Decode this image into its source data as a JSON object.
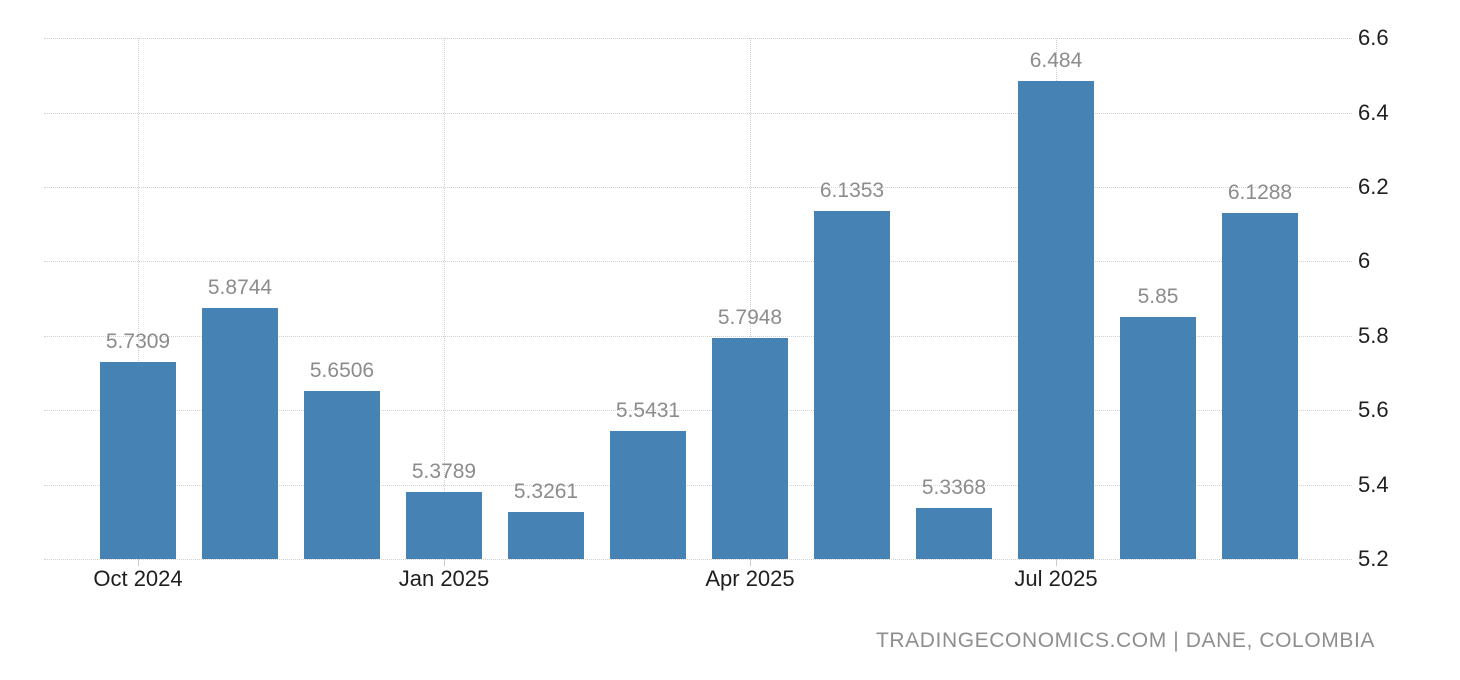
{
  "chart_data": {
    "type": "bar",
    "title": "",
    "xlabel": "",
    "ylabel": "",
    "legend": "none",
    "grid": "dotted horizontal at every y tick; dotted vertical at quarter x ticks",
    "y_axis_side": "right",
    "ylim": [
      5.2,
      6.7
    ],
    "values": [
      5.7309,
      5.8744,
      5.6506,
      5.3789,
      5.3261,
      5.5431,
      5.7948,
      6.1353,
      5.3368,
      6.484,
      5.85,
      6.1288
    ],
    "value_labels": [
      "5.7309",
      "5.8744",
      "5.6506",
      "5.3789",
      "5.3261",
      "5.5431",
      "5.7948",
      "6.1353",
      "5.3368",
      "6.484",
      "5.85",
      "6.1288"
    ],
    "x_ticks": [
      {
        "label": "Oct 2024",
        "bar_index": 0
      },
      {
        "label": "Jan 2025",
        "bar_index": 3
      },
      {
        "label": "Apr 2025",
        "bar_index": 6
      },
      {
        "label": "Jul 2025",
        "bar_index": 9
      }
    ],
    "y_ticks": [
      {
        "value": 5.2,
        "label": "5.2"
      },
      {
        "value": 5.4,
        "label": "5.4"
      },
      {
        "value": 5.6,
        "label": "5.6"
      },
      {
        "value": 5.8,
        "label": "5.8"
      },
      {
        "value": 6.0,
        "label": "6"
      },
      {
        "value": 6.2,
        "label": "6.2"
      },
      {
        "value": 6.4,
        "label": "6.4"
      },
      {
        "value": 6.6,
        "label": "6.6"
      }
    ],
    "colors": {
      "bar": "#4682b4",
      "value_label": "#8c8c8c",
      "axis_label": "#1f1f1f",
      "gridline": "#d2d2d2",
      "tick": "#cccccc",
      "attribution": "#8e8e8e",
      "background": "#ffffff"
    },
    "attribution": "TRADINGECONOMICS.COM | DANE, COLOMBIA"
  }
}
